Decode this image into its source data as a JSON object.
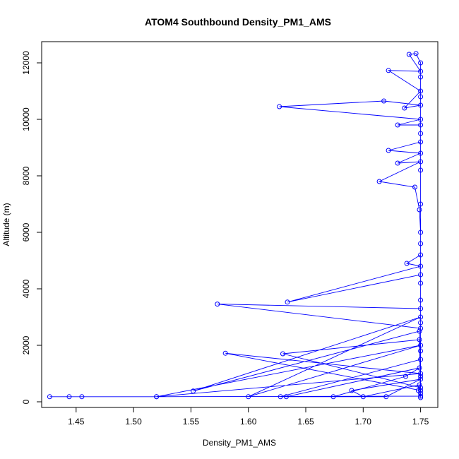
{
  "chart_data": {
    "type": "line",
    "title": "ATOM4 Southbound Density_PM1_AMS",
    "xlabel": "Density_PM1_AMS",
    "ylabel": "Altitude (m)",
    "xlim": [
      1.42,
      1.765
    ],
    "ylim": [
      -200,
      12750
    ],
    "xticks": [
      1.45,
      1.5,
      1.55,
      1.6,
      1.65,
      1.7,
      1.75
    ],
    "xtick_labels": [
      "1.45",
      "1.50",
      "1.55",
      "1.60",
      "1.65",
      "1.70",
      "1.75"
    ],
    "yticks": [
      0,
      2000,
      4000,
      6000,
      8000,
      10000,
      12000
    ],
    "ytick_labels": [
      "0",
      "2000",
      "4000",
      "6000",
      "8000",
      "10000",
      "12000"
    ],
    "grid": false,
    "legend": "none",
    "series": [
      {
        "color": "#0000ff",
        "marker": "open-circle",
        "points": [
          {
            "x": 1.427,
            "y": 180
          },
          {
            "x": 1.444,
            "y": 180
          },
          {
            "x": 1.455,
            "y": 180
          },
          {
            "x": 1.52,
            "y": 180
          },
          {
            "x": 1.75,
            "y": 200
          },
          {
            "x": 1.748,
            "y": 400
          },
          {
            "x": 1.749,
            "y": 600
          },
          {
            "x": 1.7,
            "y": 180
          },
          {
            "x": 1.69,
            "y": 400
          },
          {
            "x": 1.75,
            "y": 800
          },
          {
            "x": 1.72,
            "y": 180
          },
          {
            "x": 1.633,
            "y": 180
          },
          {
            "x": 1.749,
            "y": 1200
          },
          {
            "x": 1.737,
            "y": 900
          },
          {
            "x": 1.674,
            "y": 180
          },
          {
            "x": 1.628,
            "y": 180
          },
          {
            "x": 1.75,
            "y": 1500
          },
          {
            "x": 1.749,
            "y": 2500
          },
          {
            "x": 1.552,
            "y": 380
          },
          {
            "x": 1.75,
            "y": 3000
          },
          {
            "x": 1.6,
            "y": 180
          },
          {
            "x": 1.75,
            "y": 2000
          },
          {
            "x": 1.52,
            "y": 180
          },
          {
            "x": 1.75,
            "y": 1000
          },
          {
            "x": 1.58,
            "y": 1720
          },
          {
            "x": 1.75,
            "y": 400
          },
          {
            "x": 1.749,
            "y": 2200
          },
          {
            "x": 1.63,
            "y": 1700
          },
          {
            "x": 1.75,
            "y": 500
          },
          {
            "x": 1.75,
            "y": 3300
          },
          {
            "x": 1.573,
            "y": 3460
          },
          {
            "x": 1.75,
            "y": 2600
          },
          {
            "x": 1.75,
            "y": 4500
          },
          {
            "x": 1.634,
            "y": 3530
          },
          {
            "x": 1.75,
            "y": 4800
          },
          {
            "x": 1.738,
            "y": 4900
          },
          {
            "x": 1.75,
            "y": 5200
          },
          {
            "x": 1.75,
            "y": 6000
          },
          {
            "x": 1.749,
            "y": 6800
          },
          {
            "x": 1.745,
            "y": 7600
          },
          {
            "x": 1.714,
            "y": 7800
          },
          {
            "x": 1.75,
            "y": 8500
          },
          {
            "x": 1.73,
            "y": 8450
          },
          {
            "x": 1.75,
            "y": 8800
          },
          {
            "x": 1.722,
            "y": 8900
          },
          {
            "x": 1.75,
            "y": 9200
          },
          {
            "x": 1.75,
            "y": 9800
          },
          {
            "x": 1.73,
            "y": 9800
          },
          {
            "x": 1.75,
            "y": 10000
          },
          {
            "x": 1.627,
            "y": 10450
          },
          {
            "x": 1.718,
            "y": 10650
          },
          {
            "x": 1.75,
            "y": 10500
          },
          {
            "x": 1.736,
            "y": 10400
          },
          {
            "x": 1.75,
            "y": 11000
          },
          {
            "x": 1.722,
            "y": 11730
          },
          {
            "x": 1.75,
            "y": 11700
          },
          {
            "x": 1.74,
            "y": 12300
          },
          {
            "x": 1.746,
            "y": 12330
          },
          {
            "x": 1.75,
            "y": 12000
          },
          {
            "x": 1.75,
            "y": 11500
          },
          {
            "x": 1.75,
            "y": 10800
          },
          {
            "x": 1.75,
            "y": 9500
          },
          {
            "x": 1.75,
            "y": 8200
          },
          {
            "x": 1.75,
            "y": 7000
          },
          {
            "x": 1.75,
            "y": 5600
          },
          {
            "x": 1.75,
            "y": 4200
          },
          {
            "x": 1.75,
            "y": 3600
          },
          {
            "x": 1.75,
            "y": 2800
          },
          {
            "x": 1.75,
            "y": 1800
          },
          {
            "x": 1.75,
            "y": 900
          },
          {
            "x": 1.75,
            "y": 300
          },
          {
            "x": 1.75,
            "y": 150
          }
        ]
      }
    ]
  }
}
